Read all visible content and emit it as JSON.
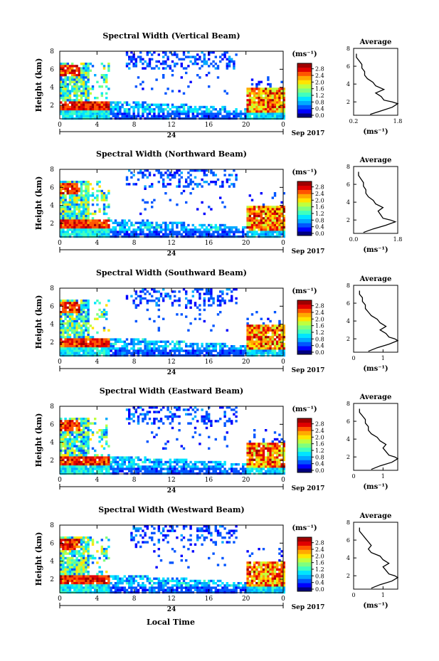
{
  "figure": {
    "xlabel_bottom": "Local Time",
    "date_label": "Sep 2017",
    "day_marker": "24",
    "colorbar_unit": "(ms⁻¹)",
    "average_title": "Average",
    "average_unit": "(ms⁻¹)",
    "colormap": [
      "#00007f",
      "#0000ff",
      "#0055ff",
      "#00aaff",
      "#00e5ff",
      "#3fffbf",
      "#7fff7f",
      "#bfff3f",
      "#ffe500",
      "#ffaa00",
      "#ff5500",
      "#e10000",
      "#9f0000"
    ]
  },
  "chart_data": [
    {
      "type": "heatmap",
      "title": "Spectral Width (Vertical Beam)",
      "ylabel": "Height (km)",
      "xticks": [
        "0",
        "4",
        "8",
        "12",
        "16",
        "20",
        "0"
      ],
      "xlim": [
        0,
        24
      ],
      "yticks": [
        "2",
        "4",
        "6",
        "8"
      ],
      "ylim": [
        0.5,
        8
      ],
      "colorbar_ticks": [
        "0.0",
        "0.4",
        "0.8",
        "1.2",
        "1.6",
        "2.0",
        "2.4",
        "2.8"
      ],
      "clim": [
        0,
        3
      ],
      "profile": {
        "xticks": [
          "0.2",
          "1.8"
        ],
        "xlim": [
          0.2,
          1.8
        ],
        "yticks": [
          "2",
          "4",
          "6",
          "8"
        ],
        "ylim": [
          0.5,
          8
        ],
        "height": [
          0.6,
          1.0,
          1.4,
          1.8,
          2.0,
          2.2,
          2.6,
          3.0,
          3.4,
          3.8,
          4.2,
          4.6,
          5.0,
          5.4,
          5.8,
          6.2,
          6.6,
          7.0,
          7.4
        ],
        "width": [
          0.8,
          1.2,
          1.6,
          1.8,
          1.6,
          1.3,
          1.2,
          1.0,
          1.3,
          1.0,
          0.9,
          0.7,
          0.6,
          0.6,
          0.5,
          0.5,
          0.4,
          0.3,
          0.3
        ]
      }
    },
    {
      "type": "heatmap",
      "title": "Spectral Width (Northward Beam)",
      "ylabel": "Height (km)",
      "xticks": [
        "0",
        "4",
        "8",
        "12",
        "16",
        "20",
        "0"
      ],
      "xlim": [
        0,
        24
      ],
      "yticks": [
        "2",
        "4",
        "6",
        "8"
      ],
      "ylim": [
        0.5,
        8
      ],
      "colorbar_ticks": [
        "0.0",
        "0.4",
        "0.8",
        "1.2",
        "1.6",
        "2.0",
        "2.4",
        "2.8"
      ],
      "clim": [
        0,
        3
      ],
      "profile": {
        "xticks": [
          "0.0",
          "1.8"
        ],
        "xlim": [
          0.0,
          1.8
        ],
        "yticks": [
          "2",
          "4",
          "6",
          "8"
        ],
        "ylim": [
          0.5,
          8
        ],
        "height": [
          0.6,
          1.0,
          1.4,
          1.8,
          2.0,
          2.2,
          2.6,
          3.0,
          3.4,
          3.8,
          4.2,
          4.6,
          5.0,
          5.4,
          5.8,
          6.2,
          6.6,
          7.0,
          7.4
        ],
        "width": [
          0.4,
          0.8,
          1.3,
          1.7,
          1.5,
          1.2,
          1.1,
          1.0,
          1.2,
          0.9,
          0.8,
          0.6,
          0.5,
          0.5,
          0.4,
          0.4,
          0.3,
          0.2,
          0.2
        ]
      }
    },
    {
      "type": "heatmap",
      "title": "Spectral Width (Southward Beam)",
      "ylabel": "Height (km)",
      "xticks": [
        "0",
        "4",
        "8",
        "12",
        "16",
        "20",
        "0"
      ],
      "xlim": [
        0,
        24
      ],
      "yticks": [
        "2",
        "4",
        "6",
        "8"
      ],
      "ylim": [
        0.5,
        8
      ],
      "colorbar_ticks": [
        "0.0",
        "0.4",
        "0.8",
        "1.2",
        "1.6",
        "2.0",
        "2.4",
        "2.8"
      ],
      "clim": [
        0,
        3
      ],
      "profile": {
        "xticks": [
          "0",
          "1"
        ],
        "xlim": [
          0,
          1.5
        ],
        "yticks": [
          "2",
          "4",
          "6",
          "8"
        ],
        "ylim": [
          0.5,
          8
        ],
        "height": [
          0.6,
          1.0,
          1.4,
          1.8,
          2.0,
          2.2,
          2.6,
          3.0,
          3.4,
          3.8,
          4.2,
          4.6,
          5.0,
          5.4,
          5.8,
          6.2,
          6.6,
          7.0,
          7.4
        ],
        "width": [
          0.5,
          0.8,
          1.2,
          1.5,
          1.4,
          1.2,
          1.1,
          0.9,
          1.1,
          0.9,
          0.8,
          0.6,
          0.5,
          0.4,
          0.4,
          0.3,
          0.3,
          0.2,
          0.2
        ]
      }
    },
    {
      "type": "heatmap",
      "title": "Spectral Width (Eastward Beam)",
      "ylabel": "Height (km)",
      "xticks": [
        "0",
        "4",
        "8",
        "12",
        "16",
        "20",
        "0"
      ],
      "xlim": [
        0,
        24
      ],
      "yticks": [
        "2",
        "4",
        "6",
        "8"
      ],
      "ylim": [
        0.5,
        8
      ],
      "colorbar_ticks": [
        "0.0",
        "0.4",
        "0.8",
        "1.2",
        "1.6",
        "2.0",
        "2.4",
        "2.8"
      ],
      "clim": [
        0,
        3
      ],
      "profile": {
        "xticks": [
          "0",
          "1"
        ],
        "xlim": [
          0,
          1.5
        ],
        "yticks": [
          "2",
          "4",
          "6",
          "8"
        ],
        "ylim": [
          0.5,
          8
        ],
        "height": [
          0.6,
          1.0,
          1.4,
          1.8,
          2.0,
          2.2,
          2.6,
          3.0,
          3.4,
          3.8,
          4.2,
          4.6,
          5.0,
          5.4,
          5.8,
          6.2,
          6.6,
          7.0,
          7.4
        ],
        "width": [
          0.6,
          0.9,
          1.3,
          1.5,
          1.4,
          1.2,
          1.1,
          1.0,
          1.1,
          0.9,
          0.8,
          0.6,
          0.5,
          0.5,
          0.4,
          0.4,
          0.3,
          0.2,
          0.2
        ]
      }
    },
    {
      "type": "heatmap",
      "title": "Spectral Width (Westward Beam)",
      "ylabel": "Height (km)",
      "xticks": [
        "0",
        "4",
        "8",
        "12",
        "16",
        "20",
        "0"
      ],
      "xlim": [
        0,
        24
      ],
      "yticks": [
        "2",
        "4",
        "6",
        "8"
      ],
      "ylim": [
        0.5,
        8
      ],
      "colorbar_ticks": [
        "0.0",
        "0.4",
        "0.8",
        "1.2",
        "1.6",
        "2.0",
        "2.4",
        "2.8"
      ],
      "clim": [
        0,
        3
      ],
      "profile": {
        "xticks": [
          "0",
          "1"
        ],
        "xlim": [
          0,
          1.5
        ],
        "yticks": [
          "2",
          "4",
          "6",
          "8"
        ],
        "ylim": [
          0.5,
          8
        ],
        "height": [
          0.6,
          1.0,
          1.4,
          1.8,
          2.0,
          2.2,
          2.6,
          3.0,
          3.4,
          3.8,
          4.2,
          4.6,
          5.0,
          5.4,
          5.8,
          6.2,
          6.6,
          7.0,
          7.4
        ],
        "width": [
          0.6,
          0.9,
          1.3,
          1.5,
          1.4,
          1.2,
          1.1,
          1.0,
          1.2,
          1.0,
          0.9,
          0.6,
          0.5,
          0.6,
          0.5,
          0.4,
          0.3,
          0.2,
          0.2
        ]
      }
    }
  ]
}
